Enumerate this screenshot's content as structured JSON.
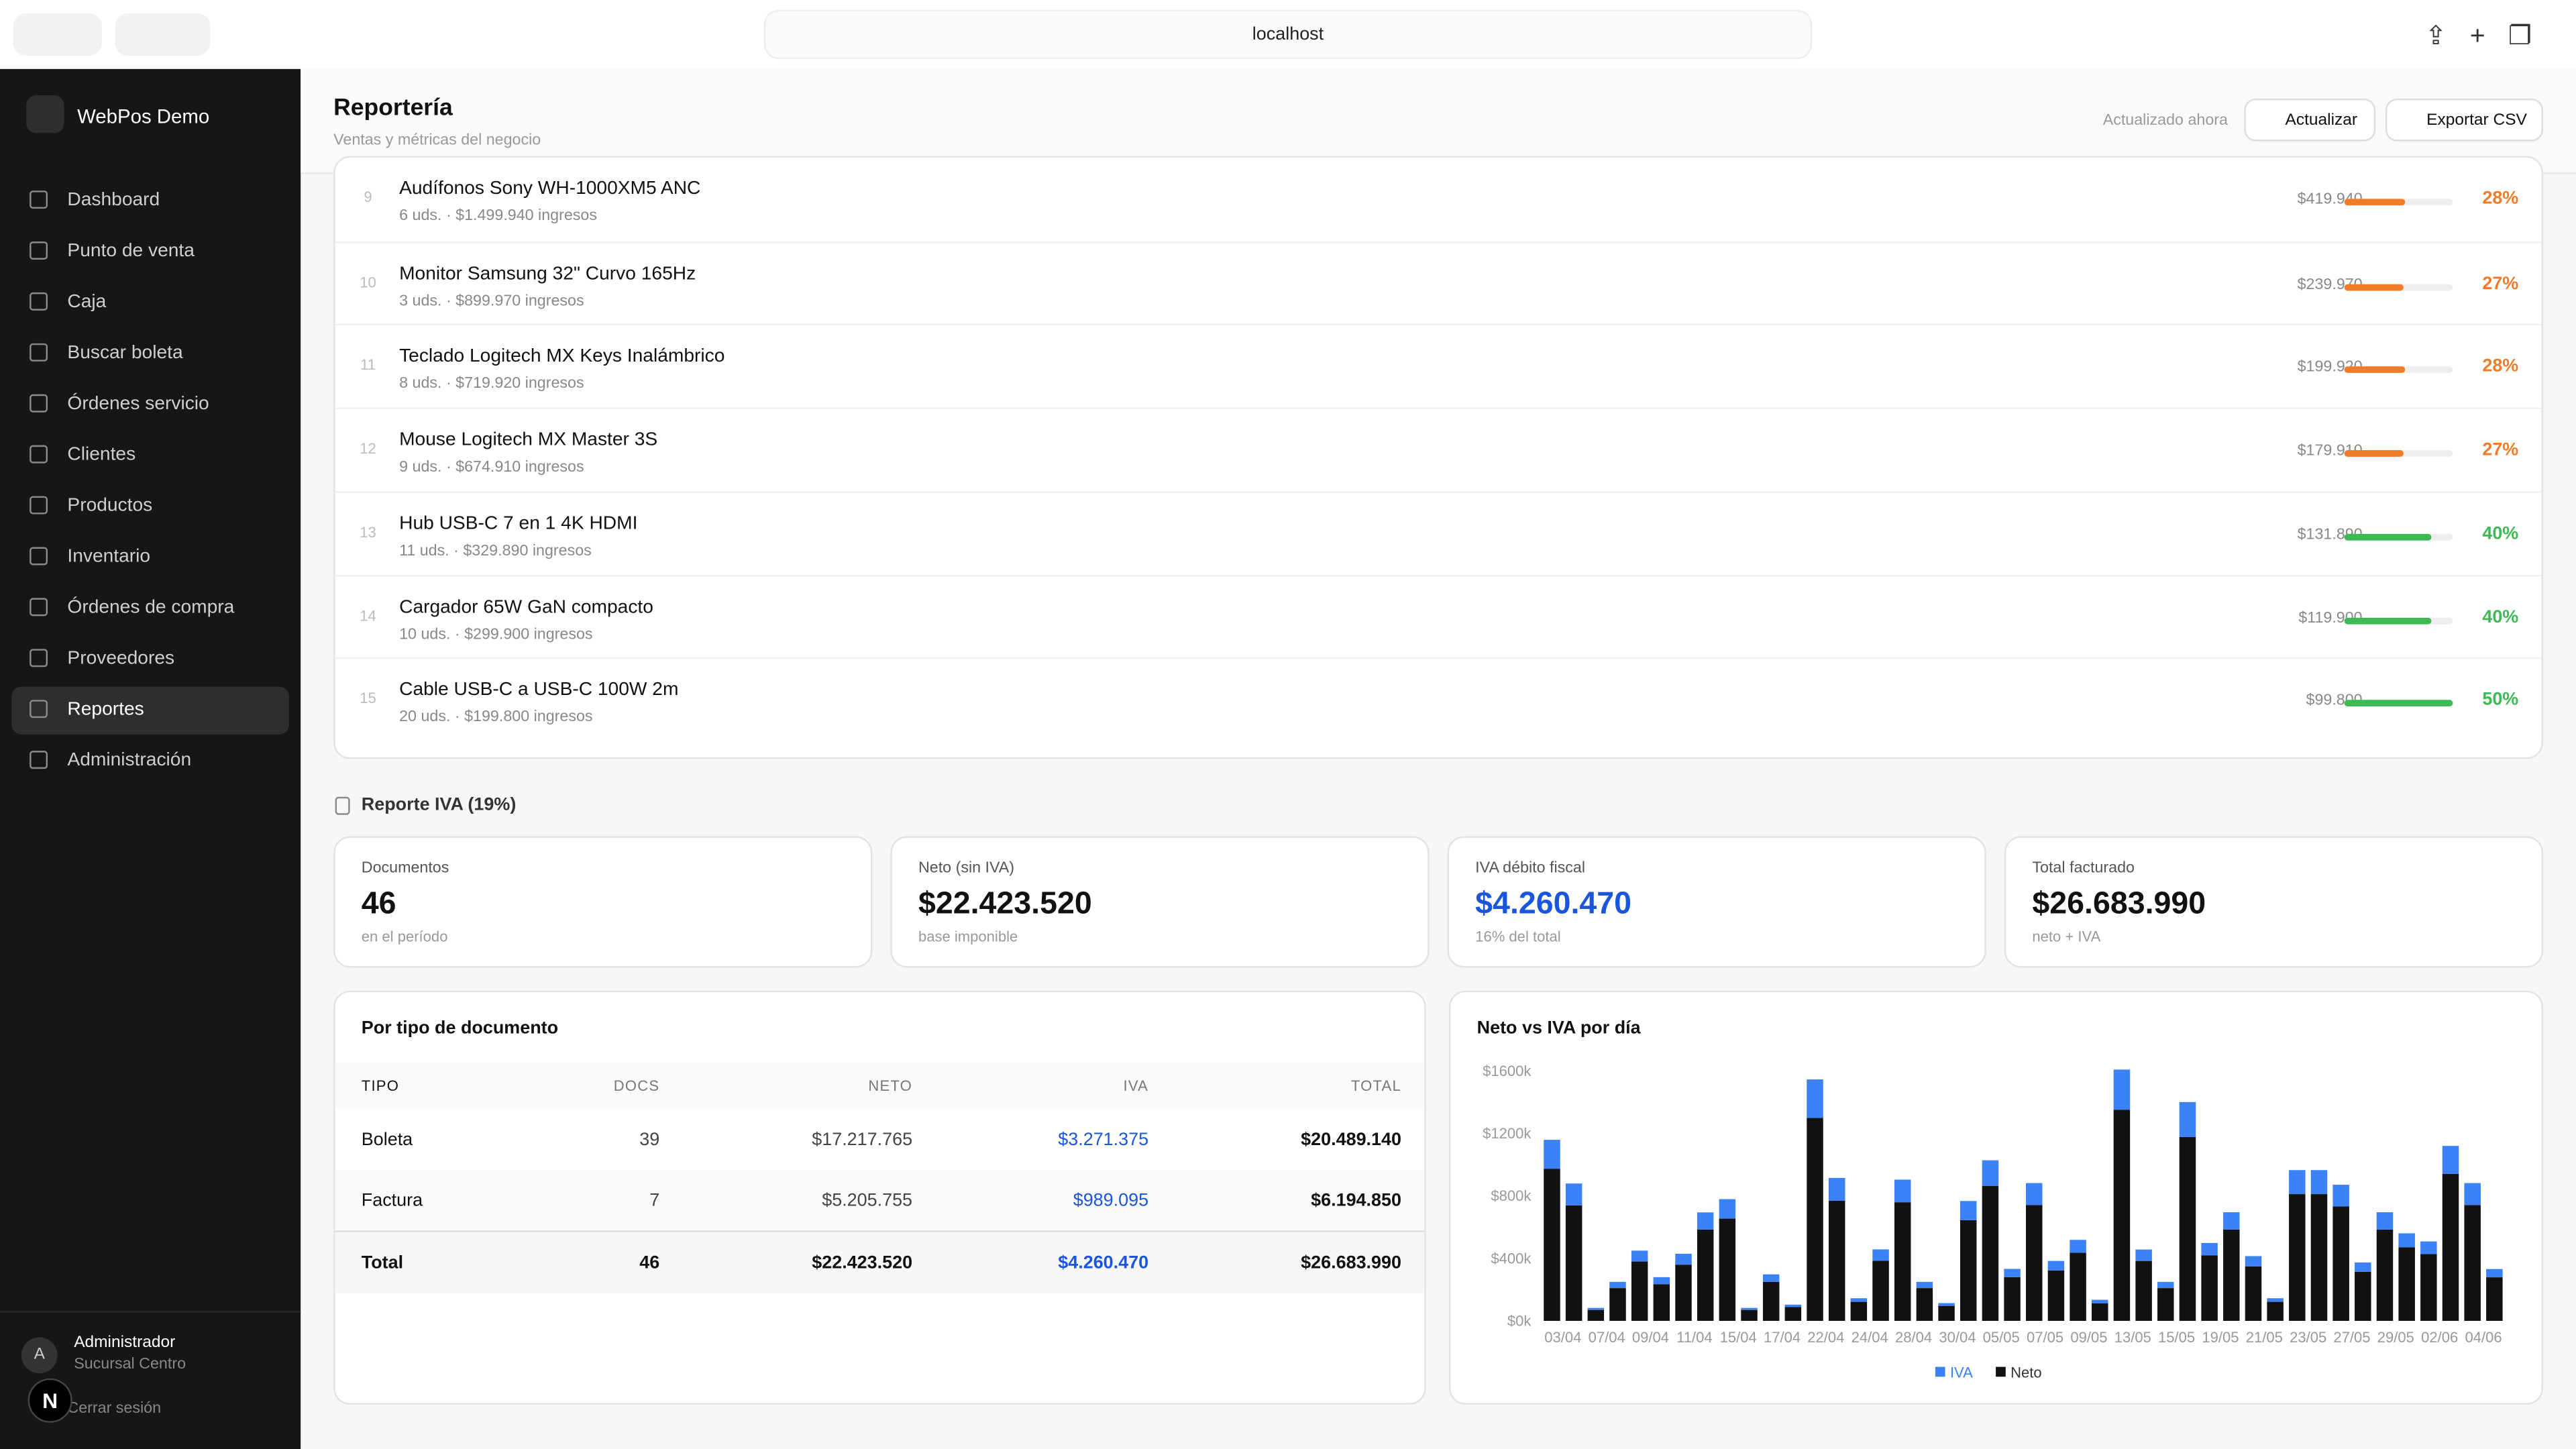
{
  "browser": {
    "url": "localhost"
  },
  "sidebar": {
    "brand": "WebPos Demo",
    "nav": [
      "Dashboard",
      "Punto de venta",
      "Caja",
      "Buscar boleta",
      "Órdenes servicio",
      "Clientes",
      "Productos",
      "Inventario",
      "Órdenes de compra",
      "Proveedores",
      "Reportes",
      "Administración"
    ],
    "active": 10,
    "user": {
      "initial": "A",
      "name": "Administrador",
      "branch": "Sucursal Centro"
    },
    "logout": "Cerrar sesión",
    "dev_badge": "N"
  },
  "header": {
    "title": "Reportería",
    "subtitle": "Ventas y métricas del negocio",
    "updated": "Actualizado ahora",
    "refresh": "Actualizar",
    "export": "Exportar CSV"
  },
  "products": [
    {
      "rank": 9,
      "name": "Audífonos Sony WH-1000XM5 ANC",
      "detail": "6 uds. · $1.499.940 ingresos",
      "profit": "$419.940",
      "margin": 28,
      "margin_label": "28%",
      "color": "#f07c2a"
    },
    {
      "rank": 10,
      "name": "Monitor Samsung 32\" Curvo 165Hz",
      "detail": "3 uds. · $899.970 ingresos",
      "profit": "$239.970",
      "margin": 27,
      "margin_label": "27%",
      "color": "#f07c2a"
    },
    {
      "rank": 11,
      "name": "Teclado Logitech MX Keys Inalámbrico",
      "detail": "8 uds. · $719.920 ingresos",
      "profit": "$199.920",
      "margin": 28,
      "margin_label": "28%",
      "color": "#f07c2a"
    },
    {
      "rank": 12,
      "name": "Mouse Logitech MX Master 3S",
      "detail": "9 uds. · $674.910 ingresos",
      "profit": "$179.910",
      "margin": 27,
      "margin_label": "27%",
      "color": "#f07c2a"
    },
    {
      "rank": 13,
      "name": "Hub USB-C 7 en 1 4K HDMI",
      "detail": "11 uds. · $329.890 ingresos",
      "profit": "$131.890",
      "margin": 40,
      "margin_label": "40%",
      "color": "#3dba54"
    },
    {
      "rank": 14,
      "name": "Cargador 65W GaN compacto",
      "detail": "10 uds. · $299.900 ingresos",
      "profit": "$119.900",
      "margin": 40,
      "margin_label": "40%",
      "color": "#3dba54"
    },
    {
      "rank": 15,
      "name": "Cable USB-C a USB-C 100W 2m",
      "detail": "20 uds. · $199.800 ingresos",
      "profit": "$99.800",
      "margin": 50,
      "margin_label": "50%",
      "color": "#3dba54"
    }
  ],
  "iva": {
    "title": "Reporte IVA (19%)",
    "cards": [
      {
        "label": "Documentos",
        "value": "46",
        "note": "en el período"
      },
      {
        "label": "Neto (sin IVA)",
        "value": "$22.423.520",
        "note": "base imponible"
      },
      {
        "label": "IVA débito fiscal",
        "value": "$4.260.470",
        "note": "16% del total",
        "color": "#1a56db"
      },
      {
        "label": "Total facturado",
        "value": "$26.683.990",
        "note": "neto + IVA"
      }
    ]
  },
  "doc_table": {
    "title": "Por tipo de documento",
    "columns": [
      "TIPO",
      "DOCS",
      "NETO",
      "IVA",
      "TOTAL"
    ],
    "rows": [
      [
        "Boleta",
        "39",
        "$17.217.765",
        "$3.271.375",
        "$20.489.140"
      ],
      [
        "Factura",
        "7",
        "$5.205.755",
        "$989.095",
        "$6.194.850"
      ]
    ],
    "total": [
      "Total",
      "46",
      "$22.423.520",
      "$4.260.470",
      "$26.683.990"
    ]
  },
  "chart_data": {
    "type": "bar",
    "stacked": true,
    "title": "Neto vs IVA por día",
    "categories": [
      "03/04",
      null,
      "07/04",
      null,
      "09/04",
      null,
      "11/04",
      null,
      "15/04",
      null,
      "17/04",
      null,
      "22/04",
      null,
      "24/04",
      null,
      "28/04",
      null,
      "30/04",
      null,
      "05/05",
      null,
      "07/05",
      null,
      "09/05",
      null,
      "13/05",
      null,
      "15/05",
      null,
      "19/05",
      null,
      "21/05",
      null,
      "23/05",
      null,
      "27/05",
      null,
      "29/05",
      null,
      "02/06",
      null,
      "04/06",
      null
    ],
    "series": [
      {
        "name": "IVA",
        "color": "#3b82f6",
        "values": [
          185,
          140,
          13,
          40,
          70,
          45,
          70,
          110,
          125,
          13,
          48,
          16,
          247,
          146,
          23,
          73,
          145,
          40,
          18,
          123,
          164,
          53,
          141,
          61,
          83,
          22,
          257,
          73,
          40,
          224,
          80,
          111,
          66,
          23,
          154,
          154,
          139,
          60,
          111,
          90,
          81,
          179,
          141,
          53
        ]
      },
      {
        "name": "Neto",
        "color": "#111111",
        "values": [
          975,
          740,
          70,
          210,
          380,
          235,
          360,
          585,
          655,
          70,
          250,
          88,
          1300,
          770,
          122,
          385,
          760,
          210,
          96,
          645,
          865,
          280,
          742,
          323,
          436,
          113,
          1353,
          384,
          210,
          1178,
          419,
          585,
          349,
          122,
          812,
          812,
          733,
          314,
          585,
          471,
          428,
          942,
          742,
          279
        ]
      }
    ],
    "ylim": [
      0,
      1650
    ],
    "yticks": [
      {
        "value": 0,
        "label": "$0k"
      },
      {
        "value": 400,
        "label": "$400k"
      },
      {
        "value": 800,
        "label": "$800k"
      },
      {
        "value": 1200,
        "label": "$1200k"
      },
      {
        "value": 1600,
        "label": "$1600k"
      }
    ],
    "grid": false,
    "legend": "bottom"
  }
}
